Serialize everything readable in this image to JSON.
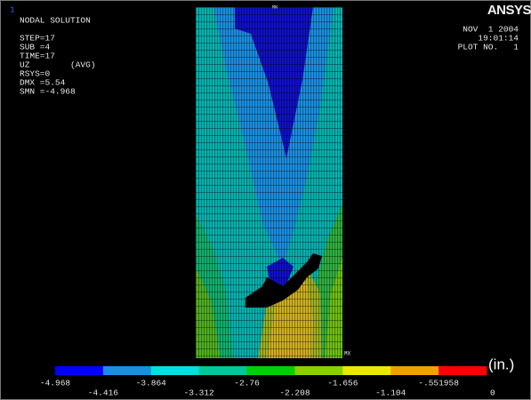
{
  "window_number": "1",
  "title": "NODAL SOLUTION",
  "info": [
    "STEP=17",
    "SUB =4",
    "TIME=17",
    "UZ        (AVG)",
    "RSYS=0",
    "DMX =5.54",
    "SMN =-4.968"
  ],
  "logo": "ANSYS",
  "date": "NOV  1 2004",
  "time": "19:01:14",
  "plot_number": "PLOT NO.   1",
  "min_label": "MN",
  "max_label": "MX",
  "legend": {
    "colors": [
      "#0000ff",
      "#1a8fe0",
      "#00e0e0",
      "#00c89a",
      "#00d000",
      "#8ad000",
      "#e8e800",
      "#f0a000",
      "#ff0000"
    ],
    "labels": [
      "-4.968",
      "-4.416",
      "-3.864",
      "-3.312",
      "-2.76",
      "-2.208",
      "-1.656",
      "-1.104",
      "-.551958",
      "0"
    ],
    "unit": "(in.)"
  }
}
